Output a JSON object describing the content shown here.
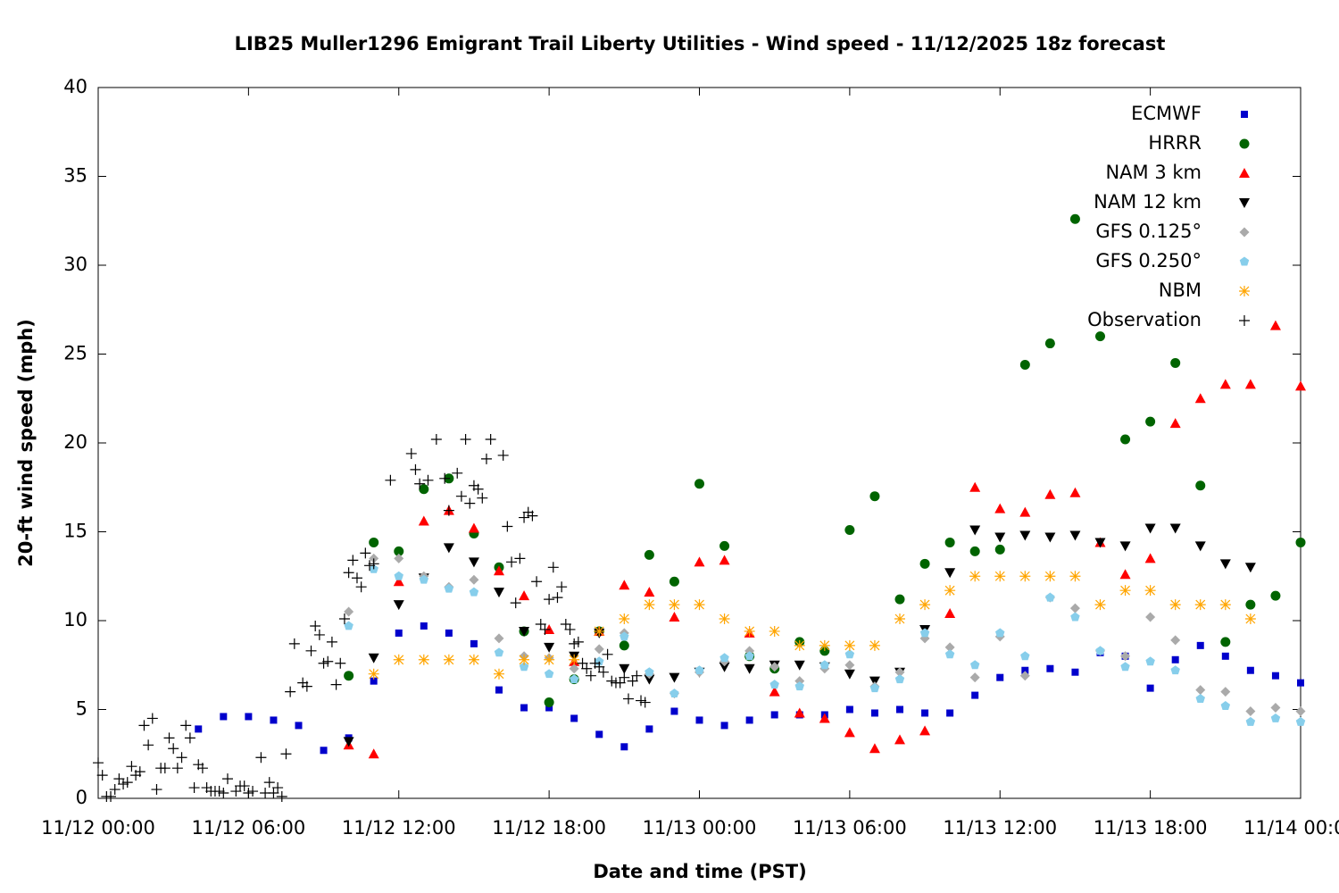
{
  "chart_data": {
    "type": "scatter",
    "title": "LIB25 Muller1296 Emigrant Trail Liberty Utilities - Wind speed - 11/12/2025 18z forecast",
    "xlabel": "Date and time (PST)",
    "ylabel": "20-ft wind speed (mph)",
    "xlim": [
      "11/12 00:00",
      "11/14 00:00"
    ],
    "xticks": [
      "11/12 00:00",
      "11/12 06:00",
      "11/12 12:00",
      "11/12 18:00",
      "11/13 00:00",
      "11/13 06:00",
      "11/13 12:00",
      "11/13 18:00",
      "11/14 00:00"
    ],
    "ylim": [
      0,
      40
    ],
    "yticks": [
      0,
      5,
      10,
      15,
      20,
      25,
      30,
      35,
      40
    ],
    "legend": "top-right",
    "series": [
      {
        "name": "ECMWF",
        "color": "#0000cc",
        "marker": "square",
        "x": [
          "11/12 04:00",
          "11/12 05:00",
          "11/12 06:00",
          "11/12 07:00",
          "11/12 08:00",
          "11/12 09:00",
          "11/12 10:00",
          "11/12 11:00",
          "11/12 12:00",
          "11/12 13:00",
          "11/12 14:00",
          "11/12 15:00",
          "11/12 16:00",
          "11/12 17:00",
          "11/12 18:00",
          "11/12 19:00",
          "11/12 20:00",
          "11/12 21:00",
          "11/12 22:00",
          "11/12 23:00",
          "11/13 00:00",
          "11/13 01:00",
          "11/13 02:00",
          "11/13 03:00",
          "11/13 04:00",
          "11/13 05:00",
          "11/13 06:00",
          "11/13 07:00",
          "11/13 08:00",
          "11/13 09:00",
          "11/13 10:00",
          "11/13 11:00",
          "11/13 12:00",
          "11/13 13:00",
          "11/13 14:00",
          "11/13 15:00",
          "11/13 16:00",
          "11/13 17:00",
          "11/13 18:00",
          "11/13 19:00",
          "11/13 20:00",
          "11/13 21:00",
          "11/13 22:00",
          "11/13 23:00",
          "11/14 00:00"
        ],
        "values": [
          3.9,
          4.6,
          4.6,
          4.4,
          4.1,
          2.7,
          3.4,
          6.6,
          9.3,
          9.7,
          9.3,
          8.7,
          6.1,
          5.1,
          5.1,
          4.5,
          3.6,
          2.9,
          3.9,
          4.9,
          4.4,
          4.1,
          4.4,
          4.7,
          4.7,
          4.7,
          5.0,
          4.8,
          5.0,
          4.8,
          4.8,
          5.8,
          6.8,
          7.2,
          7.3,
          7.1,
          8.2,
          8.0,
          6.2,
          7.8,
          8.6,
          8.0,
          7.2,
          6.9,
          6.5
        ]
      },
      {
        "name": "HRRR",
        "color": "#006400",
        "marker": "circle",
        "x": [
          "11/12 10:00",
          "11/12 11:00",
          "11/12 12:00",
          "11/12 13:00",
          "11/12 14:00",
          "11/12 15:00",
          "11/12 16:00",
          "11/12 17:00",
          "11/12 18:00",
          "11/12 19:00",
          "11/12 20:00",
          "11/12 21:00",
          "11/12 22:00",
          "11/12 23:00",
          "11/13 00:00",
          "11/13 01:00",
          "11/13 02:00",
          "11/13 03:00",
          "11/13 04:00",
          "11/13 05:00",
          "11/13 06:00",
          "11/13 07:00",
          "11/13 08:00",
          "11/13 09:00",
          "11/13 10:00",
          "11/13 11:00",
          "11/13 12:00",
          "11/13 13:00",
          "11/13 14:00",
          "11/13 15:00",
          "11/13 16:00",
          "11/13 17:00",
          "11/13 18:00",
          "11/13 19:00",
          "11/13 20:00",
          "11/13 21:00",
          "11/13 22:00",
          "11/13 23:00",
          "11/14 00:00"
        ],
        "values": [
          6.9,
          14.4,
          13.9,
          17.4,
          18.0,
          14.9,
          13.0,
          9.4,
          5.4,
          6.7,
          9.4,
          8.6,
          13.7,
          12.2,
          17.7,
          14.2,
          8.0,
          7.3,
          8.8,
          8.3,
          15.1,
          17.0,
          11.2,
          13.2,
          14.4,
          13.9,
          14.0,
          24.4,
          25.6,
          32.6,
          26.0,
          20.2,
          21.2,
          24.5,
          17.6,
          8.8,
          10.9,
          11.4,
          14.4
        ]
      },
      {
        "name": "NAM 3 km",
        "color": "#ff0000",
        "marker": "triangle-up",
        "x": [
          "11/12 10:00",
          "11/12 11:00",
          "11/12 12:00",
          "11/12 13:00",
          "11/12 14:00",
          "11/12 15:00",
          "11/12 16:00",
          "11/12 17:00",
          "11/12 18:00",
          "11/12 19:00",
          "11/12 20:00",
          "11/12 21:00",
          "11/12 22:00",
          "11/12 23:00",
          "11/13 00:00",
          "11/13 01:00",
          "11/13 02:00",
          "11/13 03:00",
          "11/13 04:00",
          "11/13 05:00",
          "11/13 06:00",
          "11/13 07:00",
          "11/13 08:00",
          "11/13 09:00",
          "11/13 10:00",
          "11/13 11:00",
          "11/13 12:00",
          "11/13 13:00",
          "11/13 14:00",
          "11/13 15:00",
          "11/13 16:00",
          "11/13 17:00",
          "11/13 18:00",
          "11/13 19:00",
          "11/13 20:00",
          "11/13 21:00",
          "11/13 22:00",
          "11/13 23:00",
          "11/14 00:00"
        ],
        "values": [
          3.0,
          2.5,
          12.2,
          15.6,
          16.2,
          15.2,
          12.8,
          11.4,
          9.5,
          7.7,
          9.4,
          12.0,
          11.6,
          10.2,
          13.3,
          13.4,
          9.3,
          6.0,
          4.8,
          4.5,
          3.7,
          2.8,
          3.3,
          3.8,
          10.4,
          17.5,
          16.3,
          16.1,
          17.1,
          17.2,
          14.4,
          12.6,
          13.5,
          21.1,
          22.5,
          23.3,
          23.3,
          26.6,
          23.2
        ]
      },
      {
        "name": "NAM 12 km",
        "color": "#000000",
        "marker": "triangle-down",
        "x": [
          "11/12 10:00",
          "11/12 11:00",
          "11/12 12:00",
          "11/12 13:00",
          "11/12 14:00",
          "11/12 15:00",
          "11/12 16:00",
          "11/12 17:00",
          "11/12 18:00",
          "11/12 19:00",
          "11/12 20:00",
          "11/12 21:00",
          "11/12 22:00",
          "11/12 23:00",
          "11/13 00:00",
          "11/13 01:00",
          "11/13 02:00",
          "11/13 03:00",
          "11/13 04:00",
          "11/13 05:00",
          "11/13 06:00",
          "11/13 07:00",
          "11/13 08:00",
          "11/13 09:00",
          "11/13 10:00",
          "11/13 11:00",
          "11/13 12:00",
          "11/13 13:00",
          "11/13 14:00",
          "11/13 15:00",
          "11/13 16:00",
          "11/13 17:00",
          "11/13 18:00",
          "11/13 19:00",
          "11/13 20:00",
          "11/13 21:00",
          "11/13 22:00"
        ],
        "values": [
          3.2,
          7.9,
          10.9,
          12.4,
          14.1,
          13.3,
          11.6,
          9.4,
          8.5,
          8.0,
          9.3,
          7.3,
          6.7,
          6.8,
          7.1,
          7.4,
          7.3,
          7.5,
          7.5,
          7.4,
          7.0,
          6.6,
          7.1,
          9.5,
          12.7,
          15.1,
          14.7,
          14.8,
          14.7,
          14.8,
          14.4,
          14.2,
          15.2,
          15.2,
          14.2,
          13.2,
          13.0
        ]
      },
      {
        "name": "GFS 0.125°",
        "color": "#aaaaaa",
        "marker": "diamond",
        "x": [
          "11/12 10:00",
          "11/12 11:00",
          "11/12 12:00",
          "11/12 13:00",
          "11/12 14:00",
          "11/12 15:00",
          "11/12 16:00",
          "11/12 17:00",
          "11/12 18:00",
          "11/12 19:00",
          "11/12 20:00",
          "11/12 21:00",
          "11/12 22:00",
          "11/12 23:00",
          "11/13 00:00",
          "11/13 01:00",
          "11/13 02:00",
          "11/13 03:00",
          "11/13 04:00",
          "11/13 05:00",
          "11/13 06:00",
          "11/13 07:00",
          "11/13 08:00",
          "11/13 09:00",
          "11/13 10:00",
          "11/13 11:00",
          "11/13 12:00",
          "11/13 13:00",
          "11/13 14:00",
          "11/13 15:00",
          "11/13 16:00",
          "11/13 17:00",
          "11/13 18:00",
          "11/13 19:00",
          "11/13 20:00",
          "11/13 21:00",
          "11/13 22:00",
          "11/13 23:00",
          "11/14 00:00"
        ],
        "values": [
          10.5,
          13.5,
          13.5,
          12.5,
          11.9,
          12.3,
          9.0,
          8.0,
          7.9,
          7.3,
          8.4,
          9.3,
          7.0,
          5.9,
          7.1,
          7.7,
          8.3,
          7.4,
          6.6,
          7.3,
          7.5,
          6.3,
          7.1,
          9.0,
          8.5,
          6.8,
          9.1,
          6.9,
          11.3,
          10.7,
          8.3,
          8.0,
          10.2,
          8.9,
          6.1,
          6.0,
          4.9,
          5.1,
          4.9
        ]
      },
      {
        "name": "GFS 0.250°",
        "color": "#87ceeb",
        "marker": "pentagon",
        "x": [
          "11/12 10:00",
          "11/12 11:00",
          "11/12 12:00",
          "11/12 13:00",
          "11/12 14:00",
          "11/12 15:00",
          "11/12 16:00",
          "11/12 17:00",
          "11/12 18:00",
          "11/12 19:00",
          "11/12 20:00",
          "11/12 21:00",
          "11/12 22:00",
          "11/12 23:00",
          "11/13 00:00",
          "11/13 01:00",
          "11/13 02:00",
          "11/13 03:00",
          "11/13 04:00",
          "11/13 05:00",
          "11/13 06:00",
          "11/13 07:00",
          "11/13 08:00",
          "11/13 09:00",
          "11/13 10:00",
          "11/13 11:00",
          "11/13 12:00",
          "11/13 13:00",
          "11/13 14:00",
          "11/13 15:00",
          "11/13 16:00",
          "11/13 17:00",
          "11/13 18:00",
          "11/13 19:00",
          "11/13 20:00",
          "11/13 21:00",
          "11/13 22:00",
          "11/13 23:00",
          "11/14 00:00"
        ],
        "values": [
          9.7,
          12.9,
          12.5,
          12.3,
          11.8,
          11.6,
          8.2,
          7.4,
          7.0,
          6.7,
          7.7,
          9.1,
          7.1,
          5.9,
          7.2,
          7.9,
          8.0,
          6.4,
          6.3,
          7.5,
          8.1,
          6.2,
          6.7,
          9.3,
          8.1,
          7.5,
          9.3,
          8.0,
          11.3,
          10.2,
          8.3,
          7.4,
          7.7,
          7.2,
          5.6,
          5.2,
          4.3,
          4.5,
          4.3
        ]
      },
      {
        "name": "NBM",
        "color": "#ffa500",
        "marker": "asterisk",
        "x": [
          "11/12 11:00",
          "11/12 12:00",
          "11/12 13:00",
          "11/12 14:00",
          "11/12 15:00",
          "11/12 16:00",
          "11/12 17:00",
          "11/12 18:00",
          "11/12 19:00",
          "11/12 20:00",
          "11/12 21:00",
          "11/12 22:00",
          "11/12 23:00",
          "11/13 00:00",
          "11/13 01:00",
          "11/13 02:00",
          "11/13 03:00",
          "11/13 04:00",
          "11/13 05:00",
          "11/13 06:00",
          "11/13 07:00",
          "11/13 08:00",
          "11/13 09:00",
          "11/13 10:00",
          "11/13 11:00",
          "11/13 12:00",
          "11/13 13:00",
          "11/13 14:00",
          "11/13 15:00",
          "11/13 16:00",
          "11/13 17:00",
          "11/13 18:00",
          "11/13 19:00",
          "11/13 20:00",
          "11/13 21:00",
          "11/13 22:00"
        ],
        "values": [
          7.0,
          7.8,
          7.8,
          7.8,
          7.8,
          7.0,
          7.8,
          7.8,
          7.8,
          9.4,
          10.1,
          10.9,
          10.9,
          10.9,
          10.1,
          9.4,
          9.4,
          8.6,
          8.6,
          8.6,
          8.6,
          10.1,
          10.9,
          11.7,
          12.5,
          12.5,
          12.5,
          12.5,
          12.5,
          10.9,
          11.7,
          11.7,
          10.9,
          10.9,
          10.9,
          10.1
        ]
      },
      {
        "name": "Observation",
        "color": "#000000",
        "marker": "plus",
        "x": [
          "11/12 00:00",
          "11/12 00:10",
          "11/12 00:20",
          "11/12 00:30",
          "11/12 00:40",
          "11/12 00:50",
          "11/12 01:00",
          "11/12 01:10",
          "11/12 01:20",
          "11/12 01:30",
          "11/12 01:40",
          "11/12 01:50",
          "11/12 02:00",
          "11/12 02:10",
          "11/12 02:20",
          "11/12 02:30",
          "11/12 02:40",
          "11/12 02:50",
          "11/12 03:00",
          "11/12 03:10",
          "11/12 03:20",
          "11/12 03:30",
          "11/12 03:40",
          "11/12 03:50",
          "11/12 04:00",
          "11/12 04:10",
          "11/12 04:20",
          "11/12 04:30",
          "11/12 04:40",
          "11/12 04:50",
          "11/12 05:00",
          "11/12 05:10",
          "11/12 05:30",
          "11/12 05:40",
          "11/12 05:50",
          "11/12 06:00",
          "11/12 06:10",
          "11/12 06:30",
          "11/12 06:40",
          "11/12 06:50",
          "11/12 07:00",
          "11/12 07:10",
          "11/12 07:20",
          "11/12 07:30",
          "11/12 07:40",
          "11/12 07:50",
          "11/12 08:10",
          "11/12 08:20",
          "11/12 08:30",
          "11/12 08:40",
          "11/12 08:50",
          "11/12 09:00",
          "11/12 09:10",
          "11/12 09:20",
          "11/12 09:30",
          "11/12 09:40",
          "11/12 09:50",
          "11/12 10:00",
          "11/12 10:10",
          "11/12 10:20",
          "11/12 10:30",
          "11/12 10:40",
          "11/12 10:50",
          "11/12 11:00",
          "11/12 11:40",
          "11/12 12:30",
          "11/12 12:40",
          "11/12 12:50",
          "11/12 13:10",
          "11/12 13:30",
          "11/12 13:50",
          "11/12 14:00",
          "11/12 14:20",
          "11/12 14:30",
          "11/12 14:40",
          "11/12 14:50",
          "11/12 15:00",
          "11/12 15:10",
          "11/12 15:20",
          "11/12 15:30",
          "11/12 15:40",
          "11/12 16:10",
          "11/12 16:20",
          "11/12 16:30",
          "11/12 16:40",
          "11/12 16:50",
          "11/12 17:00",
          "11/12 17:10",
          "11/12 17:20",
          "11/12 17:30",
          "11/12 17:40",
          "11/12 17:50",
          "11/12 18:00",
          "11/12 18:10",
          "11/12 18:20",
          "11/12 18:30",
          "11/12 18:40",
          "11/12 18:50",
          "11/12 19:00",
          "11/12 19:10",
          "11/12 19:20",
          "11/12 19:30",
          "11/12 19:40",
          "11/12 19:50",
          "11/12 20:00",
          "11/12 20:10",
          "11/12 20:20",
          "11/12 20:30",
          "11/12 20:40",
          "11/12 20:50",
          "11/12 21:00",
          "11/12 21:10",
          "11/12 21:20",
          "11/12 21:30",
          "11/12 21:40",
          "11/12 21:50"
        ],
        "values": [
          2.0,
          1.3,
          0.1,
          0.1,
          0.5,
          1.1,
          0.8,
          0.9,
          1.8,
          1.3,
          1.5,
          4.1,
          3.0,
          4.5,
          0.5,
          1.7,
          1.7,
          3.4,
          2.8,
          1.7,
          2.3,
          4.1,
          3.4,
          0.6,
          1.9,
          1.7,
          0.6,
          0.4,
          0.4,
          0.4,
          0.3,
          1.1,
          0.4,
          0.7,
          0.7,
          0.3,
          0.4,
          2.3,
          0.3,
          0.9,
          0.3,
          0.6,
          0.1,
          2.5,
          6.0,
          8.7,
          6.5,
          6.3,
          8.3,
          9.7,
          9.2,
          7.6,
          7.7,
          8.8,
          6.4,
          7.6,
          10.1,
          12.7,
          13.4,
          12.4,
          11.9,
          13.8,
          13.1,
          13.2,
          17.9,
          19.4,
          18.5,
          17.7,
          17.9,
          20.2,
          18.0,
          16.2,
          18.3,
          17.0,
          20.2,
          16.6,
          17.6,
          17.4,
          16.9,
          19.1,
          20.2,
          19.3,
          15.3,
          13.3,
          11.0,
          13.5,
          15.8,
          16.1,
          15.9,
          12.2,
          9.8,
          9.5,
          11.2,
          13.0,
          11.3,
          11.9,
          9.8,
          9.5,
          8.7,
          8.8,
          7.6,
          7.3,
          6.9,
          7.6,
          7.4,
          7.1,
          8.1,
          6.6,
          6.5,
          6.5,
          6.8,
          5.6,
          6.6,
          6.9,
          5.5,
          5.4
        ]
      }
    ]
  }
}
